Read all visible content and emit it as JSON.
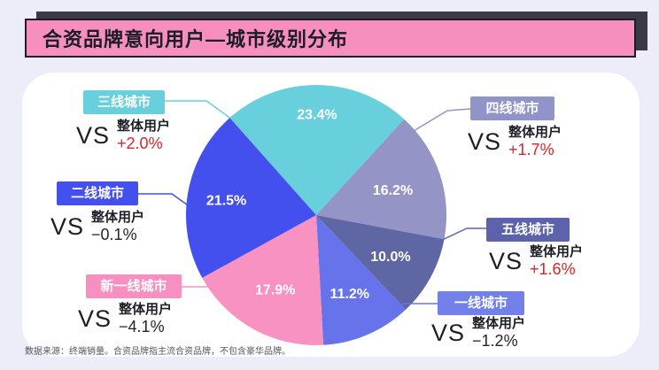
{
  "header": {
    "title": "合资品牌意向用户—城市级别分布"
  },
  "footer": {
    "note": "数据来源：终端销量。合资品牌指主流合资品牌，不包含豪华品牌。"
  },
  "chart_data": {
    "type": "pie",
    "title": "合资品牌意向用户—城市级别分布",
    "unit": "%",
    "direction": "clockwise",
    "start_angle_deg": -41.6,
    "legend_position": "callouts-around-pie",
    "value_label_color": "#FFFFFF",
    "categories": [
      "三线城市",
      "四线城市",
      "五线城市",
      "一线城市",
      "新一线城市",
      "二线城市"
    ],
    "values": [
      23.4,
      16.2,
      10.0,
      11.2,
      17.9,
      21.5
    ],
    "colors": [
      "#68D0DC",
      "#9495C6",
      "#5E66A4",
      "#6673EA",
      "#F792C2",
      "#4350EE"
    ],
    "slices": [
      {
        "label": "三线城市",
        "value": 23.4,
        "color": "#68D0DC",
        "vs": "整体用户",
        "delta": "+2.0%"
      },
      {
        "label": "四线城市",
        "value": 16.2,
        "color": "#9495C6",
        "vs": "整体用户",
        "delta": "+1.7%"
      },
      {
        "label": "五线城市",
        "value": 10.0,
        "color": "#5E66A4",
        "vs": "整体用户",
        "delta": "+1.6%"
      },
      {
        "label": "一线城市",
        "value": 11.2,
        "color": "#6673EA",
        "vs": "整体用户",
        "delta": "−1.2%"
      },
      {
        "label": "新一线城市",
        "value": 17.9,
        "color": "#F792C2",
        "vs": "整体用户",
        "delta": "−4.1%"
      },
      {
        "label": "二线城市",
        "value": 21.5,
        "color": "#4350EE",
        "vs": "整体用户",
        "delta": "−0.1%"
      }
    ]
  },
  "callouts": [
    {
      "city": "三线城市",
      "vs": "VS",
      "base": "整体用户",
      "delta": "+2.0%",
      "badge_color": "#68D0DC",
      "delta_color": "#D8232A"
    },
    {
      "city": "四线城市",
      "vs": "VS",
      "base": "整体用户",
      "delta": "+1.7%",
      "badge_color": "#9094C8",
      "delta_color": "#D8232A"
    },
    {
      "city": "二线城市",
      "vs": "VS",
      "base": "整体用户",
      "delta": "−0.1%",
      "badge_color": "#4350EE",
      "delta_color": "#24242C"
    },
    {
      "city": "五线城市",
      "vs": "VS",
      "base": "整体用户",
      "delta": "+1.6%",
      "badge_color": "#5C63AC",
      "delta_color": "#D8232A"
    },
    {
      "city": "新一线城市",
      "vs": "VS",
      "base": "整体用户",
      "delta": "−4.1%",
      "badge_color": "#F78FC0",
      "delta_color": "#24242C"
    },
    {
      "city": "一线城市",
      "vs": "VS",
      "base": "整体用户",
      "delta": "−1.2%",
      "badge_color": "#7380EA",
      "delta_color": "#24242C"
    }
  ]
}
